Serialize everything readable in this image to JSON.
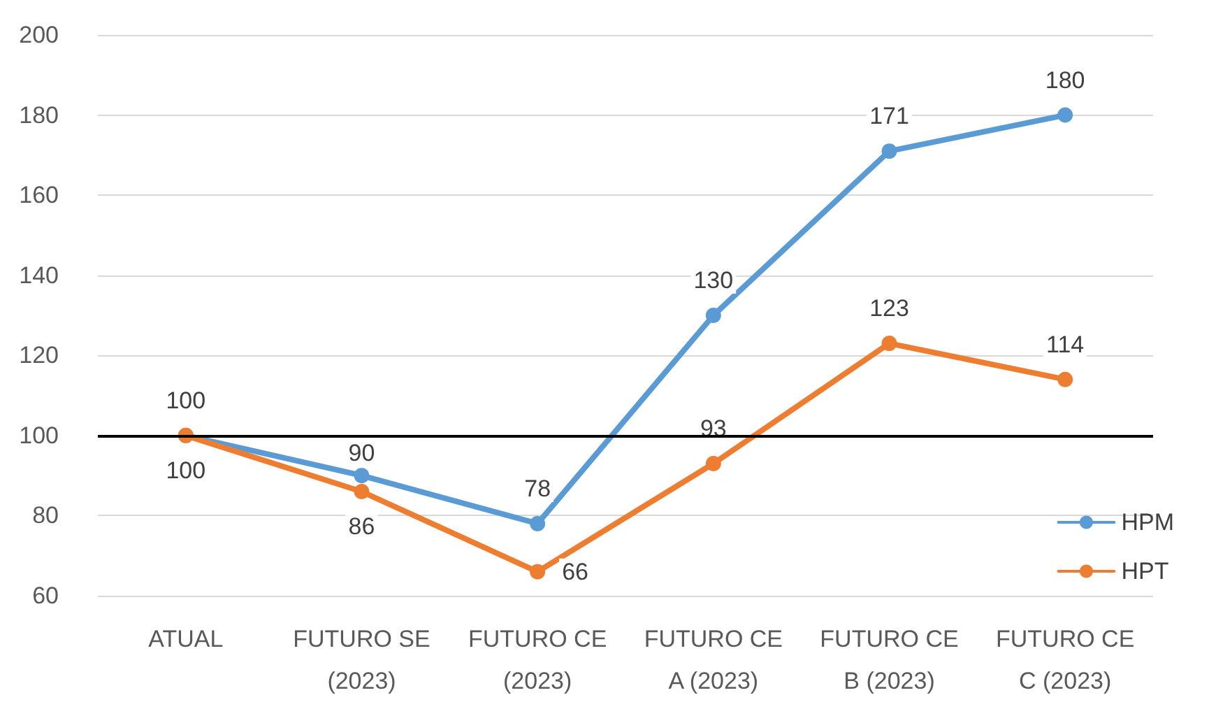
{
  "chart_data": {
    "type": "line",
    "categories": [
      "ATUAL",
      "FUTURO SE\n(2023)",
      "FUTURO CE\n(2023)",
      "FUTURO CE\nA (2023)",
      "FUTURO CE\nB (2023)",
      "FUTURO CE\nC (2023)"
    ],
    "series": [
      {
        "name": "HPM",
        "color": "#5b9bd5",
        "values": [
          100,
          90,
          78,
          130,
          171,
          180
        ]
      },
      {
        "name": "HPT",
        "color": "#ed7d31",
        "values": [
          100,
          86,
          66,
          93,
          123,
          114
        ]
      }
    ],
    "ylim": [
      60,
      200
    ],
    "yticks": [
      60,
      80,
      100,
      120,
      140,
      160,
      180,
      200
    ],
    "grid": "y",
    "legend": "bottom right",
    "marker": "circle",
    "line_style": "solid",
    "data_labels": true,
    "ref_lines": [
      {
        "axis": "y",
        "value": 100,
        "color": "#000000"
      }
    ]
  }
}
